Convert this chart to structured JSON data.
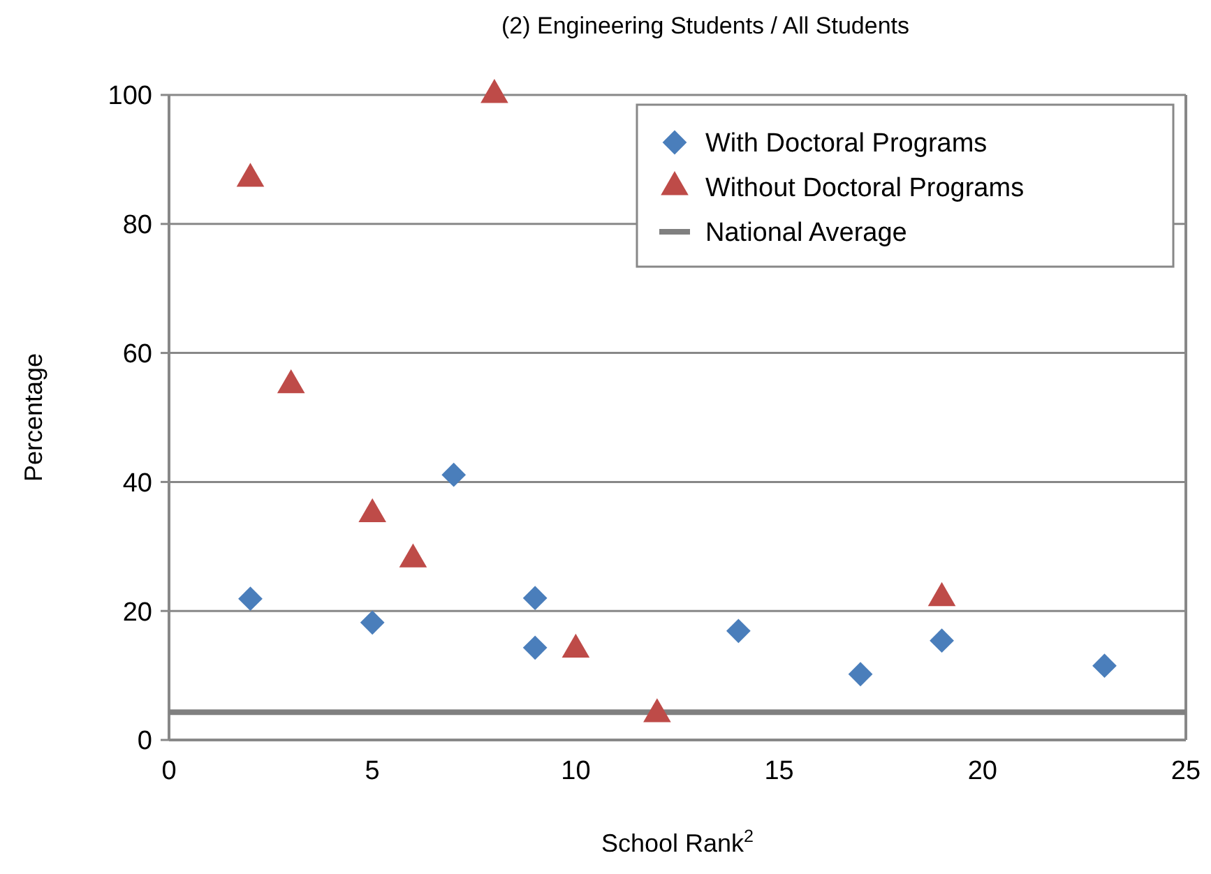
{
  "chart_data": {
    "type": "scatter",
    "title": "(2) Engineering Students / All Students",
    "xlabel": "School Rank$^{2}$",
    "ylabel": "Percentage",
    "xlim": [
      0,
      25
    ],
    "xticks": [
      0,
      5,
      10,
      15,
      20,
      25
    ],
    "ylim": [
      0,
      100
    ],
    "yticks": [
      0,
      20,
      40,
      60,
      80,
      100
    ],
    "grid": "y",
    "legend": "top right",
    "series": [
      {
        "name": "With Doctoral Programs",
        "color": "#4a7ebb",
        "marker": "diamond",
        "x": [
          2,
          5,
          7,
          9,
          9,
          14,
          17,
          19,
          23
        ],
        "values": [
          21.9,
          18.2,
          41.1,
          22,
          14.3,
          16.9,
          10.2,
          15.4,
          11.5
        ]
      },
      {
        "name": "Without Doctoral Programs",
        "color": "#be4b48",
        "marker": "triangle",
        "x": [
          2,
          3,
          5,
          6,
          8,
          10,
          12,
          19
        ],
        "values": [
          87,
          55,
          35,
          28,
          100,
          14,
          4,
          22
        ]
      }
    ],
    "ref_lines": [
      {
        "axis": "y",
        "value": 4.3,
        "label": "National Average",
        "color": "#808080",
        "line_style": "solid"
      }
    ]
  }
}
